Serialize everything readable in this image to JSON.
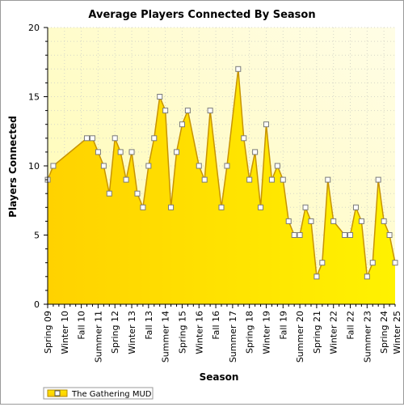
{
  "chart_data": {
    "type": "area",
    "title": "Average Players Connected By Season",
    "xlabel": "Season",
    "ylabel": "Players Connected",
    "ylim": [
      0,
      20
    ],
    "yticks": [
      0,
      5,
      10,
      15,
      20
    ],
    "xlim": [
      0,
      62
    ],
    "categories": [
      "Spring 09",
      "Winter 10",
      "Fall 10",
      "Summer 11",
      "Spring 12",
      "Winter 13",
      "Fall 13",
      "Summer 14",
      "Spring 15",
      "Winter 16",
      "Fall 16",
      "Summer 17",
      "Spring 18",
      "Winter 19",
      "Fall 19",
      "Summer 20",
      "Spring 21",
      "Winter 22",
      "Fall 22",
      "Summer 23",
      "Spring 24",
      "Winter 25"
    ],
    "category_positions": [
      0,
      3,
      6,
      9,
      12,
      15,
      18,
      21,
      24,
      27,
      30,
      33,
      36,
      39,
      42,
      45,
      48,
      51,
      54,
      57,
      60,
      63
    ],
    "grid": true,
    "legend": "bottom-left",
    "series": [
      {
        "name": "The Gathering MUD",
        "color": "#ffe600",
        "x": [
          0,
          1,
          7,
          8,
          9,
          10,
          11,
          12,
          13,
          14,
          15,
          16,
          17,
          18,
          19,
          20,
          21,
          22,
          23,
          24,
          25,
          27,
          28,
          29,
          31,
          32,
          34,
          35,
          36,
          37,
          38,
          39,
          40,
          41,
          42,
          43,
          44,
          45,
          46,
          47,
          48,
          49,
          50,
          51,
          53,
          54,
          55,
          56,
          57,
          58,
          59,
          60,
          61,
          62
        ],
        "values": [
          9,
          10,
          12,
          12,
          11,
          10,
          8,
          12,
          11,
          9,
          11,
          8,
          7,
          10,
          12,
          15,
          14,
          7,
          11,
          13,
          14,
          10,
          9,
          14,
          7,
          10,
          17,
          12,
          9,
          11,
          7,
          13,
          9,
          10,
          9,
          6,
          5,
          5,
          7,
          6,
          2,
          3,
          9,
          6,
          5,
          5,
          7,
          6,
          2,
          3,
          9,
          6,
          5,
          3
        ]
      }
    ]
  }
}
